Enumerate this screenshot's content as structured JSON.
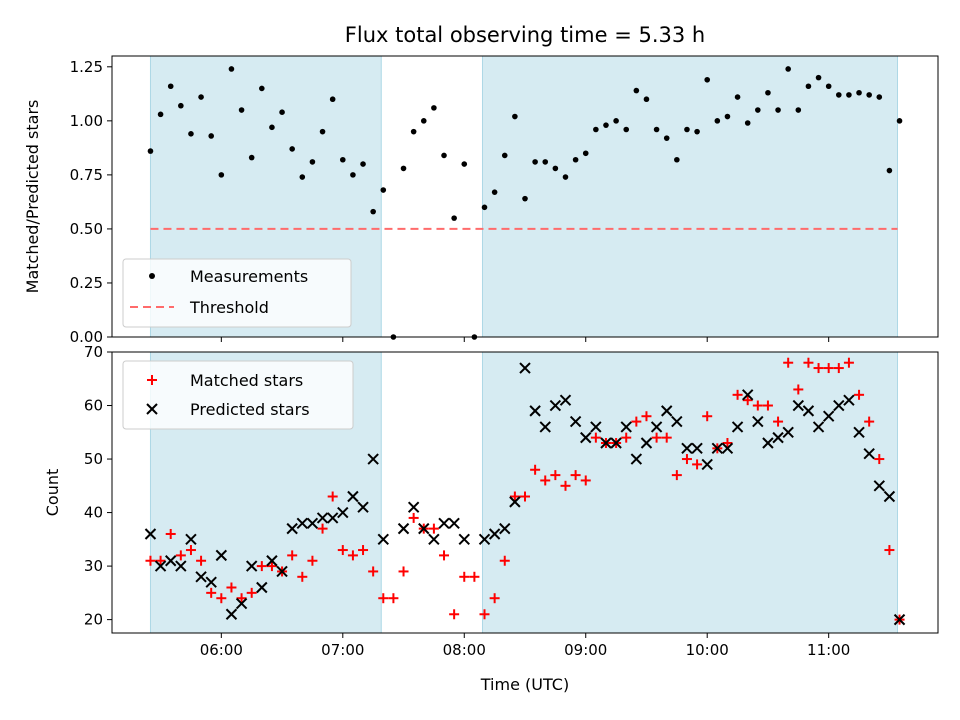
{
  "chart_data": [
    {
      "type": "scatter",
      "title": "Flux total observing time = 5.33 h",
      "ylabel": "Matched/Predicted stars",
      "ylim": [
        0,
        1.3
      ],
      "yticks": [
        0.0,
        0.25,
        0.5,
        0.75,
        1.0,
        1.25
      ],
      "ytick_labels": [
        "0.00",
        "0.25",
        "0.50",
        "0.75",
        "1.00",
        "1.25"
      ],
      "xlim": [
        "05:06",
        "11:54"
      ],
      "grid": false,
      "legend_position": "lower-left",
      "shaded_intervals": [
        [
          "05:25",
          "07:19"
        ],
        [
          "08:09",
          "11:34"
        ]
      ],
      "shade_color": "#add8e6",
      "threshold": {
        "name": "Threshold",
        "value": 0.5,
        "color": "#ff6b6b",
        "style": "dashed"
      },
      "series": [
        {
          "name": "Measurements",
          "color": "#000000",
          "marker": "dot",
          "points": [
            [
              "05:25",
              0.86
            ],
            [
              "05:30",
              1.03
            ],
            [
              "05:35",
              1.16
            ],
            [
              "05:40",
              1.07
            ],
            [
              "05:45",
              0.94
            ],
            [
              "05:50",
              1.11
            ],
            [
              "05:55",
              0.93
            ],
            [
              "06:00",
              0.75
            ],
            [
              "06:05",
              1.24
            ],
            [
              "06:10",
              1.05
            ],
            [
              "06:15",
              0.83
            ],
            [
              "06:20",
              1.15
            ],
            [
              "06:25",
              0.97
            ],
            [
              "06:30",
              1.04
            ],
            [
              "06:35",
              0.87
            ],
            [
              "06:40",
              0.74
            ],
            [
              "06:45",
              0.81
            ],
            [
              "06:50",
              0.95
            ],
            [
              "06:55",
              1.1
            ],
            [
              "07:00",
              0.82
            ],
            [
              "07:05",
              0.75
            ],
            [
              "07:10",
              0.8
            ],
            [
              "07:15",
              0.58
            ],
            [
              "07:20",
              0.68
            ],
            [
              "07:25",
              0.0
            ],
            [
              "07:30",
              0.78
            ],
            [
              "07:35",
              0.95
            ],
            [
              "07:40",
              1.0
            ],
            [
              "07:45",
              1.06
            ],
            [
              "07:50",
              0.84
            ],
            [
              "07:55",
              0.55
            ],
            [
              "08:00",
              0.8
            ],
            [
              "08:05",
              0.0
            ],
            [
              "08:10",
              0.6
            ],
            [
              "08:15",
              0.67
            ],
            [
              "08:20",
              0.84
            ],
            [
              "08:25",
              1.02
            ],
            [
              "08:30",
              0.64
            ],
            [
              "08:35",
              0.81
            ],
            [
              "08:40",
              0.81
            ],
            [
              "08:45",
              0.78
            ],
            [
              "08:50",
              0.74
            ],
            [
              "08:55",
              0.82
            ],
            [
              "09:00",
              0.85
            ],
            [
              "09:05",
              0.96
            ],
            [
              "09:10",
              0.98
            ],
            [
              "09:15",
              1.0
            ],
            [
              "09:20",
              0.96
            ],
            [
              "09:25",
              1.14
            ],
            [
              "09:30",
              1.1
            ],
            [
              "09:35",
              0.96
            ],
            [
              "09:40",
              0.92
            ],
            [
              "09:45",
              0.82
            ],
            [
              "09:50",
              0.96
            ],
            [
              "09:55",
              0.95
            ],
            [
              "10:00",
              1.19
            ],
            [
              "10:05",
              1.0
            ],
            [
              "10:10",
              1.02
            ],
            [
              "10:15",
              1.11
            ],
            [
              "10:20",
              0.99
            ],
            [
              "10:25",
              1.05
            ],
            [
              "10:30",
              1.13
            ],
            [
              "10:35",
              1.05
            ],
            [
              "10:40",
              1.24
            ],
            [
              "10:45",
              1.05
            ],
            [
              "10:50",
              1.16
            ],
            [
              "10:55",
              1.2
            ],
            [
              "11:00",
              1.16
            ],
            [
              "11:05",
              1.12
            ],
            [
              "11:10",
              1.12
            ],
            [
              "11:15",
              1.13
            ],
            [
              "11:20",
              1.12
            ],
            [
              "11:25",
              1.11
            ],
            [
              "11:30",
              0.77
            ],
            [
              "11:35",
              1.0
            ]
          ]
        }
      ]
    },
    {
      "type": "scatter",
      "xlabel": "Time (UTC)",
      "ylabel": "Count",
      "ylim": [
        17.5,
        70
      ],
      "yticks": [
        20,
        30,
        40,
        50,
        60,
        70
      ],
      "ytick_labels": [
        "20",
        "30",
        "40",
        "50",
        "60",
        "70"
      ],
      "xlim": [
        "05:06",
        "11:54"
      ],
      "xticks": [
        "06:00",
        "07:00",
        "08:00",
        "09:00",
        "10:00",
        "11:00"
      ],
      "xtick_labels": [
        "06:00",
        "07:00",
        "08:00",
        "09:00",
        "10:00",
        "11:00"
      ],
      "grid": false,
      "legend_position": "top-left",
      "shaded_intervals": [
        [
          "05:25",
          "07:19"
        ],
        [
          "08:09",
          "11:34"
        ]
      ],
      "series": [
        {
          "name": "Matched stars",
          "color": "#ff0000",
          "marker": "plus",
          "points": [
            [
              "05:25",
              31
            ],
            [
              "05:30",
              31
            ],
            [
              "05:35",
              36
            ],
            [
              "05:40",
              32
            ],
            [
              "05:45",
              33
            ],
            [
              "05:50",
              31
            ],
            [
              "05:55",
              25
            ],
            [
              "06:00",
              24
            ],
            [
              "06:05",
              26
            ],
            [
              "06:10",
              24
            ],
            [
              "06:15",
              25
            ],
            [
              "06:20",
              30
            ],
            [
              "06:25",
              30
            ],
            [
              "06:30",
              29
            ],
            [
              "06:35",
              32
            ],
            [
              "06:40",
              28
            ],
            [
              "06:45",
              31
            ],
            [
              "06:50",
              37
            ],
            [
              "06:55",
              43
            ],
            [
              "07:00",
              33
            ],
            [
              "07:05",
              32
            ],
            [
              "07:10",
              33
            ],
            [
              "07:15",
              29
            ],
            [
              "07:20",
              24
            ],
            [
              "07:25",
              24
            ],
            [
              "07:30",
              29
            ],
            [
              "07:35",
              39
            ],
            [
              "07:40",
              37
            ],
            [
              "07:45",
              37
            ],
            [
              "07:50",
              32
            ],
            [
              "07:55",
              21
            ],
            [
              "08:00",
              28
            ],
            [
              "08:05",
              28
            ],
            [
              "08:10",
              21
            ],
            [
              "08:15",
              24
            ],
            [
              "08:20",
              31
            ],
            [
              "08:25",
              43
            ],
            [
              "08:30",
              43
            ],
            [
              "08:35",
              48
            ],
            [
              "08:40",
              46
            ],
            [
              "08:45",
              47
            ],
            [
              "08:50",
              45
            ],
            [
              "08:55",
              47
            ],
            [
              "09:00",
              46
            ],
            [
              "09:05",
              54
            ],
            [
              "09:10",
              53
            ],
            [
              "09:15",
              53
            ],
            [
              "09:20",
              54
            ],
            [
              "09:25",
              57
            ],
            [
              "09:30",
              58
            ],
            [
              "09:35",
              54
            ],
            [
              "09:40",
              54
            ],
            [
              "09:45",
              47
            ],
            [
              "09:50",
              50
            ],
            [
              "09:55",
              49
            ],
            [
              "10:00",
              58
            ],
            [
              "10:05",
              52
            ],
            [
              "10:10",
              53
            ],
            [
              "10:15",
              62
            ],
            [
              "10:20",
              61
            ],
            [
              "10:25",
              60
            ],
            [
              "10:30",
              60
            ],
            [
              "10:35",
              57
            ],
            [
              "10:40",
              68
            ],
            [
              "10:45",
              63
            ],
            [
              "10:50",
              68
            ],
            [
              "10:55",
              67
            ],
            [
              "11:00",
              67
            ],
            [
              "11:05",
              67
            ],
            [
              "11:10",
              68
            ],
            [
              "11:15",
              62
            ],
            [
              "11:20",
              57
            ],
            [
              "11:25",
              50
            ],
            [
              "11:30",
              33
            ],
            [
              "11:35",
              20
            ]
          ]
        },
        {
          "name": "Predicted stars",
          "color": "#000000",
          "marker": "x",
          "points": [
            [
              "05:25",
              36
            ],
            [
              "05:30",
              30
            ],
            [
              "05:35",
              31
            ],
            [
              "05:40",
              30
            ],
            [
              "05:45",
              35
            ],
            [
              "05:50",
              28
            ],
            [
              "05:55",
              27
            ],
            [
              "06:00",
              32
            ],
            [
              "06:05",
              21
            ],
            [
              "06:10",
              23
            ],
            [
              "06:15",
              30
            ],
            [
              "06:20",
              26
            ],
            [
              "06:25",
              31
            ],
            [
              "06:30",
              29
            ],
            [
              "06:35",
              37
            ],
            [
              "06:40",
              38
            ],
            [
              "06:45",
              38
            ],
            [
              "06:50",
              39
            ],
            [
              "06:55",
              39
            ],
            [
              "07:00",
              40
            ],
            [
              "07:05",
              43
            ],
            [
              "07:10",
              41
            ],
            [
              "07:15",
              50
            ],
            [
              "07:20",
              35
            ],
            [
              "07:30",
              37
            ],
            [
              "07:35",
              41
            ],
            [
              "07:40",
              37
            ],
            [
              "07:45",
              35
            ],
            [
              "07:50",
              38
            ],
            [
              "07:55",
              38
            ],
            [
              "08:00",
              35
            ],
            [
              "08:10",
              35
            ],
            [
              "08:15",
              36
            ],
            [
              "08:20",
              37
            ],
            [
              "08:25",
              42
            ],
            [
              "08:30",
              67
            ],
            [
              "08:35",
              59
            ],
            [
              "08:40",
              56
            ],
            [
              "08:45",
              60
            ],
            [
              "08:50",
              61
            ],
            [
              "08:55",
              57
            ],
            [
              "09:00",
              54
            ],
            [
              "09:05",
              56
            ],
            [
              "09:10",
              53
            ],
            [
              "09:15",
              53
            ],
            [
              "09:20",
              56
            ],
            [
              "09:25",
              50
            ],
            [
              "09:30",
              53
            ],
            [
              "09:35",
              56
            ],
            [
              "09:40",
              59
            ],
            [
              "09:45",
              57
            ],
            [
              "09:50",
              52
            ],
            [
              "09:55",
              52
            ],
            [
              "10:00",
              49
            ],
            [
              "10:05",
              52
            ],
            [
              "10:10",
              52
            ],
            [
              "10:15",
              56
            ],
            [
              "10:20",
              62
            ],
            [
              "10:25",
              57
            ],
            [
              "10:30",
              53
            ],
            [
              "10:35",
              54
            ],
            [
              "10:40",
              55
            ],
            [
              "10:45",
              60
            ],
            [
              "10:50",
              59
            ],
            [
              "10:55",
              56
            ],
            [
              "11:00",
              58
            ],
            [
              "11:05",
              60
            ],
            [
              "11:10",
              61
            ],
            [
              "11:15",
              55
            ],
            [
              "11:20",
              51
            ],
            [
              "11:25",
              45
            ],
            [
              "11:30",
              43
            ],
            [
              "11:35",
              20
            ]
          ]
        }
      ]
    }
  ]
}
